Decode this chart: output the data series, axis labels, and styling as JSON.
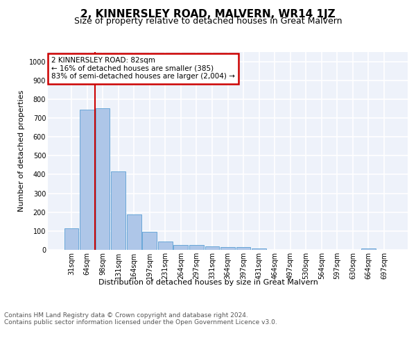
{
  "title": "2, KINNERSLEY ROAD, MALVERN, WR14 1JZ",
  "subtitle": "Size of property relative to detached houses in Great Malvern",
  "xlabel": "Distribution of detached houses by size in Great Malvern",
  "ylabel": "Number of detached properties",
  "categories": [
    "31sqm",
    "64sqm",
    "98sqm",
    "131sqm",
    "164sqm",
    "197sqm",
    "231sqm",
    "264sqm",
    "297sqm",
    "331sqm",
    "364sqm",
    "397sqm",
    "431sqm",
    "464sqm",
    "497sqm",
    "530sqm",
    "564sqm",
    "597sqm",
    "630sqm",
    "664sqm",
    "697sqm"
  ],
  "values": [
    113,
    745,
    752,
    418,
    188,
    97,
    45,
    24,
    24,
    17,
    15,
    15,
    6,
    0,
    0,
    0,
    0,
    0,
    0,
    7,
    0
  ],
  "bar_color": "#aec6e8",
  "bar_edge_color": "#5a9fd4",
  "vline_index": 1.5,
  "vline_color": "#cc0000",
  "annotation_text": "2 KINNERSLEY ROAD: 82sqm\n← 16% of detached houses are smaller (385)\n83% of semi-detached houses are larger (2,004) →",
  "annotation_box_color": "#ffffff",
  "annotation_box_edge_color": "#cc0000",
  "ylim": [
    0,
    1050
  ],
  "yticks": [
    0,
    100,
    200,
    300,
    400,
    500,
    600,
    700,
    800,
    900,
    1000
  ],
  "background_color": "#eef2fa",
  "grid_color": "#ffffff",
  "footer_text": "Contains HM Land Registry data © Crown copyright and database right 2024.\nContains public sector information licensed under the Open Government Licence v3.0.",
  "title_fontsize": 11,
  "subtitle_fontsize": 9,
  "xlabel_fontsize": 8,
  "ylabel_fontsize": 8,
  "tick_fontsize": 7,
  "annotation_fontsize": 7.5,
  "footer_fontsize": 6.5
}
